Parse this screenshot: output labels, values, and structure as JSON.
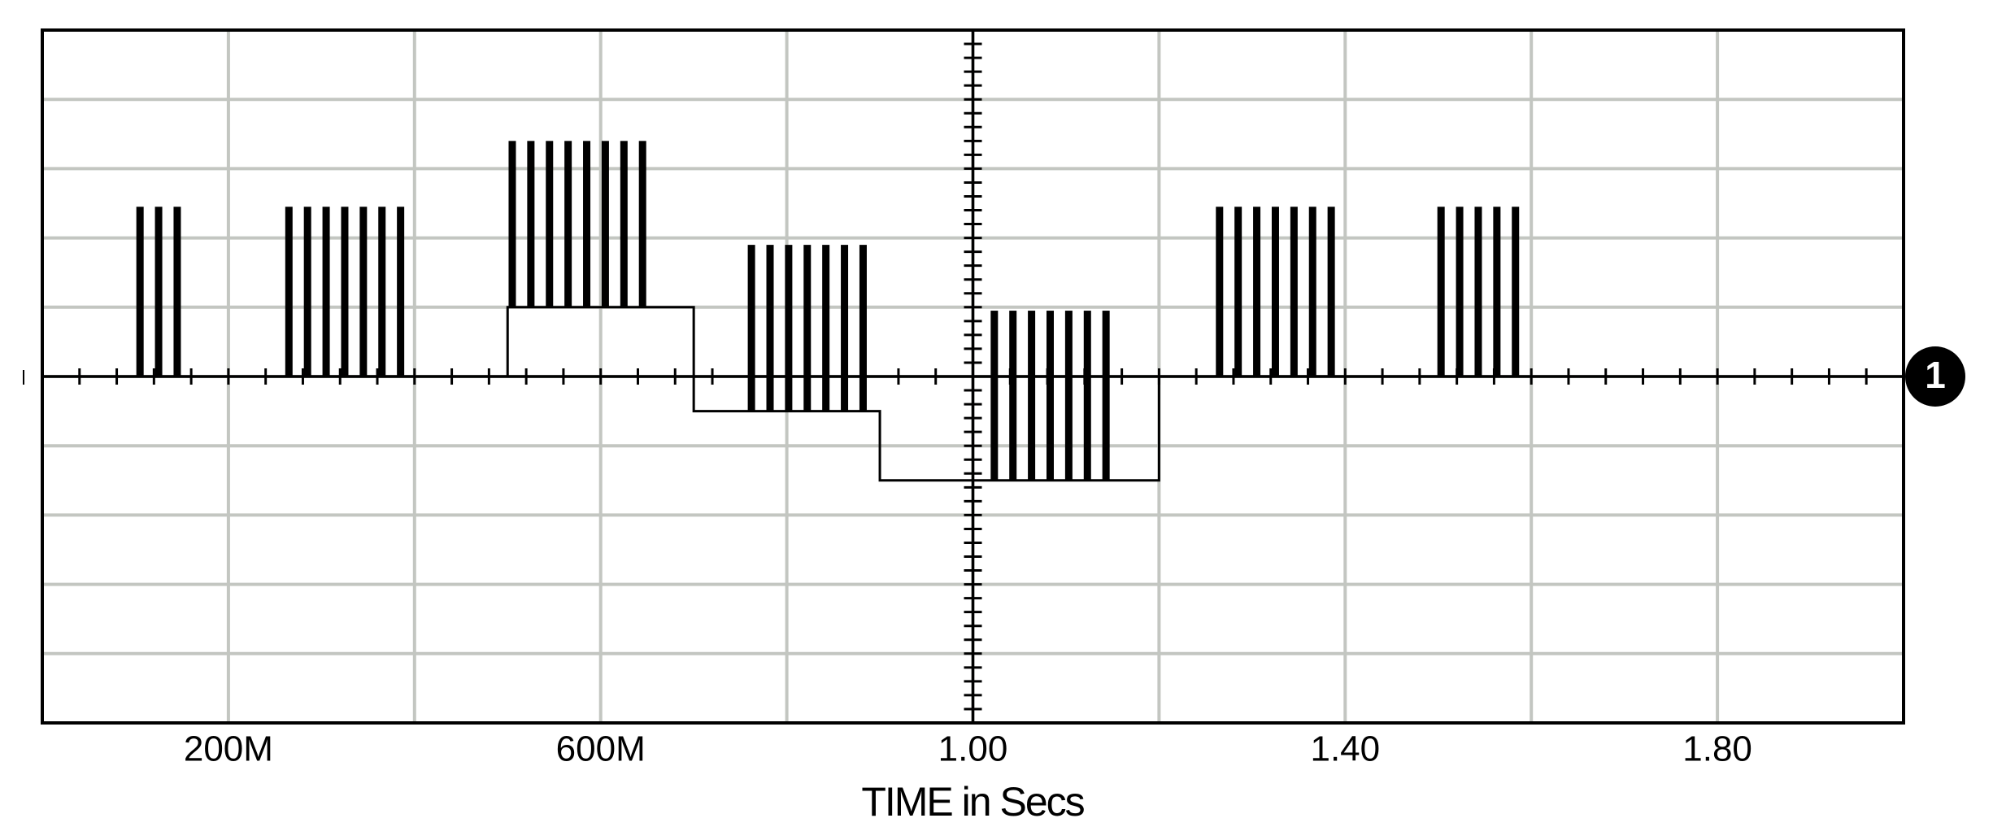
{
  "chart_data": {
    "type": "waveform",
    "x_label": "TIME in Secs",
    "trace_label": "1",
    "xlim": [
      0,
      2.0
    ],
    "ylim": [
      -5,
      5
    ],
    "xticks": [
      {
        "value": 0.2,
        "label": "200M"
      },
      {
        "value": 0.4,
        "label": null
      },
      {
        "value": 0.6,
        "label": "600M"
      },
      {
        "value": 0.8,
        "label": null
      },
      {
        "value": 1.0,
        "label": "1.00"
      },
      {
        "value": 1.2,
        "label": null
      },
      {
        "value": 1.4,
        "label": "1.40"
      },
      {
        "value": 1.6,
        "label": null
      },
      {
        "value": 1.8,
        "label": "1.80"
      }
    ],
    "yticks": [
      -4,
      -3,
      -2,
      -1,
      0,
      1,
      2,
      3,
      4
    ],
    "grid": true,
    "color": "#000000",
    "baseline": {
      "x": [
        0,
        0.5,
        0.5,
        0.7,
        0.7,
        0.9,
        0.9,
        1.2,
        1.2,
        2.0
      ],
      "y": [
        0,
        0,
        1,
        1,
        -0.5,
        -0.5,
        -1.5,
        -1.5,
        0,
        0
      ]
    },
    "pulses": {
      "x": [
        0.105,
        0.125,
        0.145,
        0.265,
        0.285,
        0.305,
        0.325,
        0.345,
        0.365,
        0.385,
        0.505,
        0.525,
        0.545,
        0.565,
        0.585,
        0.605,
        0.625,
        0.645,
        0.762,
        0.782,
        0.802,
        0.822,
        0.842,
        0.862,
        0.882,
        1.023,
        1.043,
        1.063,
        1.083,
        1.103,
        1.123,
        1.143,
        1.265,
        1.285,
        1.305,
        1.325,
        1.345,
        1.365,
        1.385,
        1.503,
        1.523,
        1.543,
        1.563,
        1.583
      ],
      "base": [
        0,
        0,
        0,
        0,
        0,
        0,
        0,
        0,
        0,
        0,
        1,
        1,
        1,
        1,
        1,
        1,
        1,
        1,
        -0.5,
        -0.5,
        -0.5,
        -0.5,
        -0.5,
        -0.5,
        -0.5,
        -1.5,
        -1.5,
        -1.5,
        -1.5,
        -1.5,
        -1.5,
        -1.5,
        0,
        0,
        0,
        0,
        0,
        0,
        0,
        0,
        0,
        0,
        0,
        0
      ],
      "top": [
        2.45,
        2.45,
        2.45,
        2.45,
        2.45,
        2.45,
        2.45,
        2.45,
        2.45,
        2.45,
        3.4,
        3.4,
        3.4,
        3.4,
        3.4,
        3.4,
        3.4,
        3.4,
        1.9,
        1.9,
        1.9,
        1.9,
        1.9,
        1.9,
        1.9,
        0.95,
        0.95,
        0.95,
        0.95,
        0.95,
        0.95,
        0.95,
        2.45,
        2.45,
        2.45,
        2.45,
        2.45,
        2.45,
        2.45,
        2.45,
        2.45,
        2.45,
        2.45,
        2.45
      ]
    }
  }
}
